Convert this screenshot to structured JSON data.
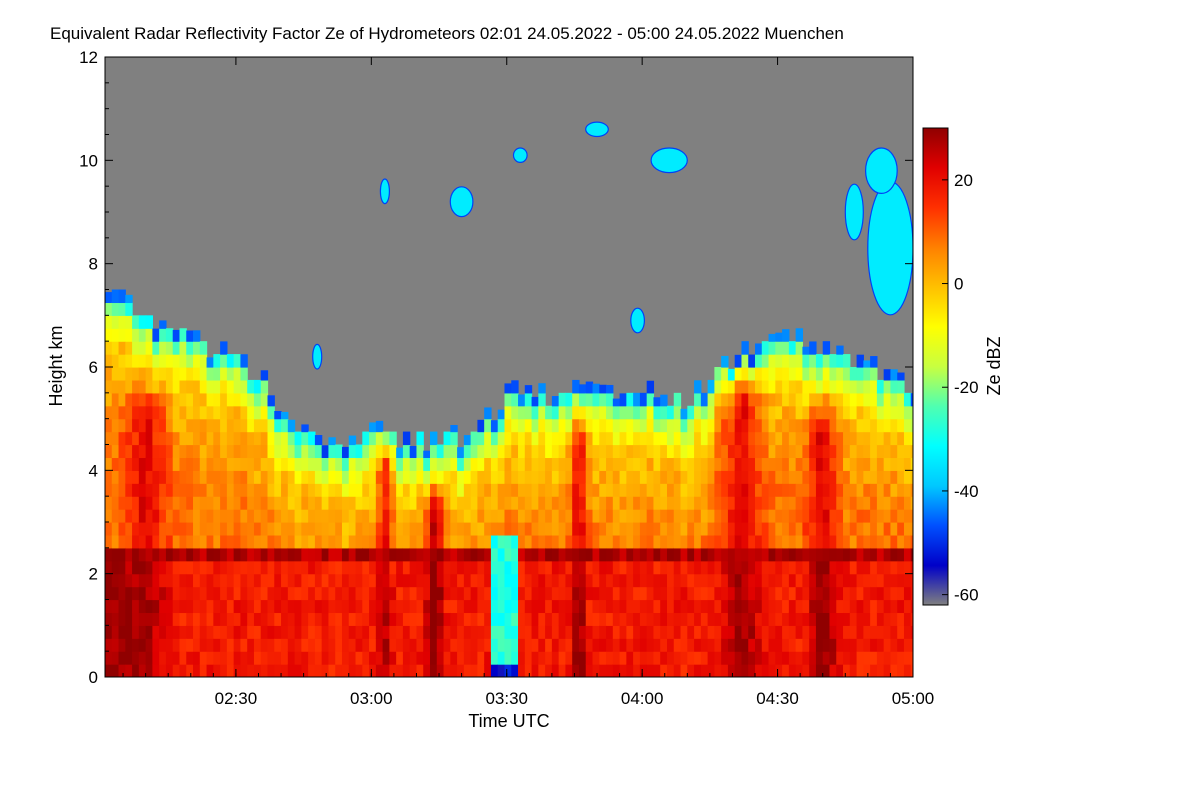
{
  "chart_data": {
    "type": "heatmap",
    "title": "Equivalent Radar Reflectivity Factor Ze of Hydrometeors   02:01 24.05.2022 - 05:00 24.05.2022 Muenchen",
    "xlabel": "Time UTC",
    "ylabel": "Height km",
    "colorbar_label": "Ze dBZ",
    "x_range_minutes": [
      121,
      300
    ],
    "x_ticks": [
      {
        "label": "02:30",
        "minutes": 150
      },
      {
        "label": "03:00",
        "minutes": 180
      },
      {
        "label": "03:30",
        "minutes": 210
      },
      {
        "label": "04:00",
        "minutes": 240
      },
      {
        "label": "04:30",
        "minutes": 270
      },
      {
        "label": "05:00",
        "minutes": 300
      }
    ],
    "ylim": [
      0,
      12
    ],
    "y_ticks": [
      0,
      2,
      4,
      6,
      8,
      10,
      12
    ],
    "clim": [
      -62,
      30
    ],
    "colorbar_ticks": [
      20,
      0,
      -20,
      -40,
      -60
    ],
    "background_color": "#808080",
    "colormap": [
      "#808080",
      "#0000c8",
      "#0050ff",
      "#00c8ff",
      "#00ffff",
      "#50ffb0",
      "#c8ff40",
      "#ffff00",
      "#ffc000",
      "#ff8000",
      "#ff3000",
      "#e00000",
      "#900000"
    ],
    "echo_top_km": [
      {
        "t": 121,
        "h": 7.7
      },
      {
        "t": 130,
        "h": 7.0
      },
      {
        "t": 140,
        "h": 6.5
      },
      {
        "t": 150,
        "h": 6.3
      },
      {
        "t": 160,
        "h": 5.2
      },
      {
        "t": 170,
        "h": 4.6
      },
      {
        "t": 180,
        "h": 4.8
      },
      {
        "t": 190,
        "h": 4.6
      },
      {
        "t": 200,
        "h": 4.7
      },
      {
        "t": 210,
        "h": 5.5
      },
      {
        "t": 220,
        "h": 5.6
      },
      {
        "t": 230,
        "h": 5.6
      },
      {
        "t": 240,
        "h": 5.5
      },
      {
        "t": 250,
        "h": 5.4
      },
      {
        "t": 260,
        "h": 6.2
      },
      {
        "t": 270,
        "h": 6.6
      },
      {
        "t": 280,
        "h": 6.4
      },
      {
        "t": 290,
        "h": 6.0
      },
      {
        "t": 300,
        "h": 5.7
      }
    ],
    "intense_columns": [
      {
        "t": 130,
        "width_min": 14,
        "top_km": 5.8,
        "ze": 22
      },
      {
        "t": 183,
        "width_min": 5,
        "top_km": 4.8,
        "ze": 20
      },
      {
        "t": 194,
        "width_min": 6,
        "top_km": 4.0,
        "ze": 26
      },
      {
        "t": 226,
        "width_min": 5,
        "top_km": 5.3,
        "ze": 24
      },
      {
        "t": 262,
        "width_min": 14,
        "top_km": 6.1,
        "ze": 22
      },
      {
        "t": 280,
        "width_min": 10,
        "top_km": 5.6,
        "ze": 24
      }
    ],
    "melting_layer_km": 2.4,
    "clear_gap": {
      "t_start": 207,
      "t_end": 212,
      "ze": -28
    },
    "upper_cloud_patches": [
      {
        "t": 200,
        "h": 9.2,
        "w_min": 5,
        "dh": 0.5
      },
      {
        "t": 213,
        "h": 10.1,
        "w_min": 3,
        "dh": 0.2
      },
      {
        "t": 183,
        "h": 9.4,
        "w_min": 2,
        "dh": 0.4
      },
      {
        "t": 246,
        "h": 10.0,
        "w_min": 8,
        "dh": 0.4
      },
      {
        "t": 230,
        "h": 10.6,
        "w_min": 5,
        "dh": 0.2
      },
      {
        "t": 295,
        "h": 8.3,
        "w_min": 10,
        "dh": 2.5
      },
      {
        "t": 287,
        "h": 9.0,
        "w_min": 4,
        "dh": 1.0
      },
      {
        "t": 239,
        "h": 6.9,
        "w_min": 3,
        "dh": 0.4
      },
      {
        "t": 168,
        "h": 6.2,
        "w_min": 2,
        "dh": 0.4
      },
      {
        "t": 293,
        "h": 9.8,
        "w_min": 7,
        "dh": 0.8
      }
    ]
  }
}
